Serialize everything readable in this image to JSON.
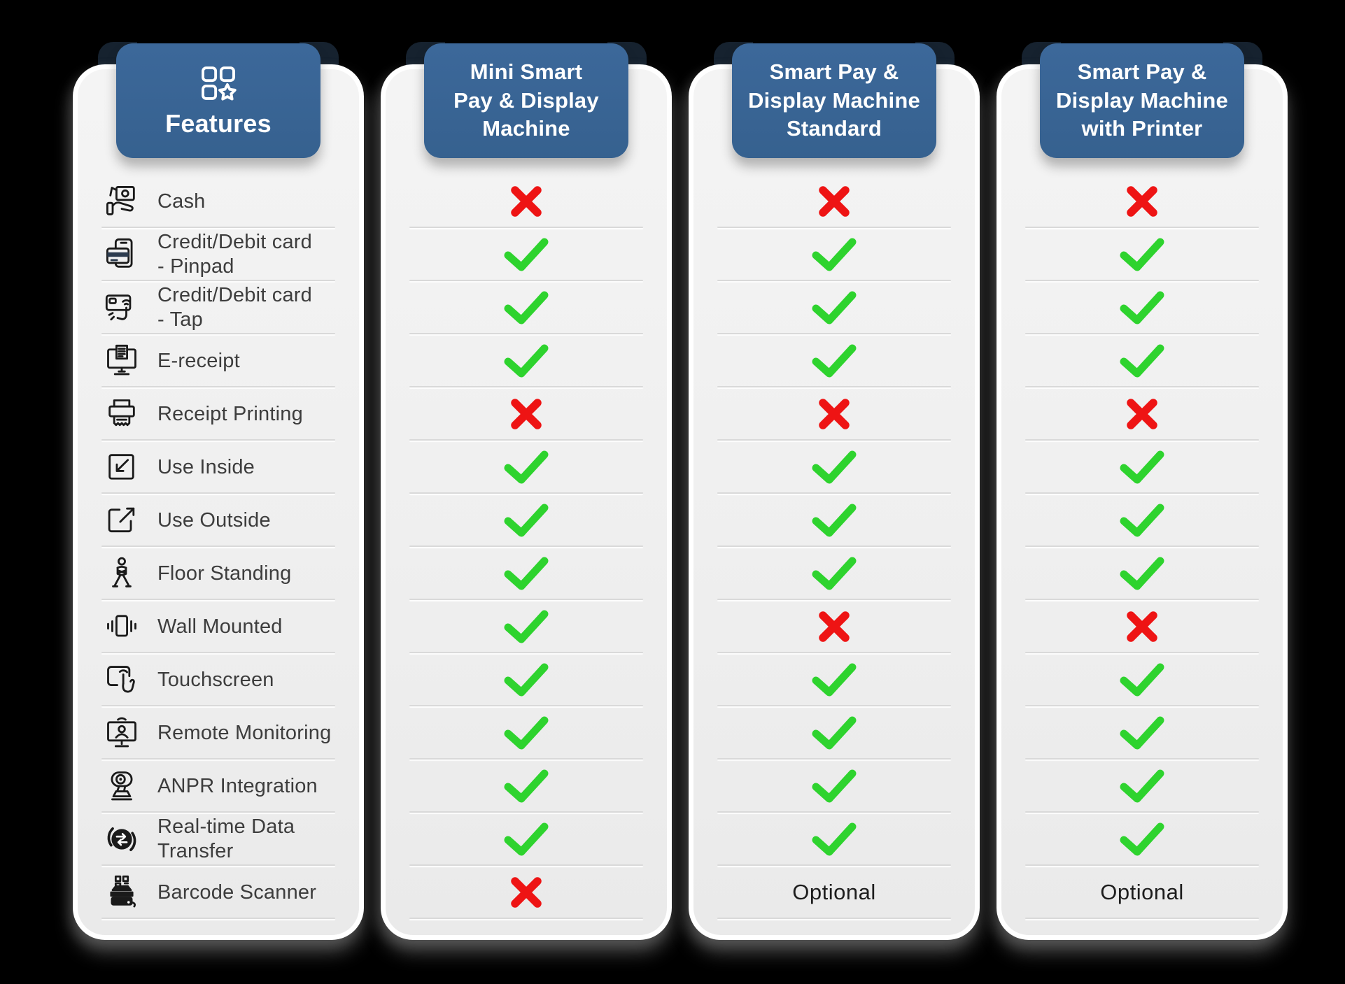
{
  "colors": {
    "background": "#000000",
    "header_blue": "#36618F",
    "ribbon_fold_navy": "#16222F",
    "card_gray": "#EFEFEF",
    "check_green": "#2ED32E",
    "cross_red": "#EE1414",
    "feature_label_gray": "#3D3D3D",
    "optional_text": "#1D1D1D"
  },
  "columns": [
    {
      "id": "features",
      "header": {
        "label": "Features",
        "icon": "categories-star-icon"
      },
      "rows": [
        {
          "icon": "cash-icon",
          "label": "Cash"
        },
        {
          "icon": "card-pinpad-icon",
          "label": "Credit/Debit card\n- Pinpad"
        },
        {
          "icon": "card-tap-icon",
          "label": "Credit/Debit card\n- Tap"
        },
        {
          "icon": "e-receipt-icon",
          "label": "E-receipt"
        },
        {
          "icon": "receipt-printing-icon",
          "label": "Receipt Printing"
        },
        {
          "icon": "use-inside-icon",
          "label": "Use Inside"
        },
        {
          "icon": "use-outside-icon",
          "label": "Use Outside"
        },
        {
          "icon": "floor-standing-icon",
          "label": "Floor Standing"
        },
        {
          "icon": "wall-mounted-icon",
          "label": "Wall Mounted"
        },
        {
          "icon": "touchscreen-icon",
          "label": "Touchscreen"
        },
        {
          "icon": "remote-monitoring-icon",
          "label": "Remote Monitoring"
        },
        {
          "icon": "anpr-camera-icon",
          "label": "ANPR Integration"
        },
        {
          "icon": "realtime-data-icon",
          "label": "Real-time Data\nTransfer"
        },
        {
          "icon": "barcode-scanner-icon",
          "label": "Barcode Scanner"
        }
      ]
    },
    {
      "id": "mini-smart-pay-display",
      "header": {
        "label": "Mini Smart\nPay & Display\nMachine"
      },
      "values": [
        "no",
        "yes",
        "yes",
        "yes",
        "no",
        "yes",
        "yes",
        "yes",
        "yes",
        "yes",
        "yes",
        "yes",
        "yes",
        "no"
      ]
    },
    {
      "id": "smart-pay-display-standard",
      "header": {
        "label": "Smart Pay &\nDisplay Machine\nStandard"
      },
      "values": [
        "no",
        "yes",
        "yes",
        "yes",
        "no",
        "yes",
        "yes",
        "yes",
        "no",
        "yes",
        "yes",
        "yes",
        "yes",
        "Optional"
      ]
    },
    {
      "id": "smart-pay-display-printer",
      "header": {
        "label": "Smart Pay &\nDisplay Machine\nwith Printer"
      },
      "values": [
        "no",
        "yes",
        "yes",
        "yes",
        "no",
        "yes",
        "yes",
        "yes",
        "no",
        "yes",
        "yes",
        "yes",
        "yes",
        "Optional"
      ]
    }
  ],
  "chart_data": {
    "type": "table",
    "columns": [
      "Features",
      "Mini Smart Pay & Display Machine",
      "Smart Pay & Display Machine Standard",
      "Smart Pay & Display Machine with Printer"
    ],
    "rows": [
      [
        "Cash",
        "no",
        "no",
        "no"
      ],
      [
        "Credit/Debit card - Pinpad",
        "yes",
        "yes",
        "yes"
      ],
      [
        "Credit/Debit card - Tap",
        "yes",
        "yes",
        "yes"
      ],
      [
        "E-receipt",
        "yes",
        "yes",
        "yes"
      ],
      [
        "Receipt Printing",
        "no",
        "no",
        "no"
      ],
      [
        "Use Inside",
        "yes",
        "yes",
        "yes"
      ],
      [
        "Use Outside",
        "yes",
        "yes",
        "yes"
      ],
      [
        "Floor Standing",
        "yes",
        "yes",
        "yes"
      ],
      [
        "Wall Mounted",
        "yes",
        "no",
        "no"
      ],
      [
        "Touchscreen",
        "yes",
        "yes",
        "yes"
      ],
      [
        "Remote Monitoring",
        "yes",
        "yes",
        "yes"
      ],
      [
        "ANPR Integration",
        "yes",
        "yes",
        "yes"
      ],
      [
        "Real-time Data Transfer",
        "yes",
        "yes",
        "yes"
      ],
      [
        "Barcode Scanner",
        "no",
        "Optional",
        "Optional"
      ]
    ],
    "legend": {
      "yes": "green check mark",
      "no": "red cross mark"
    }
  }
}
